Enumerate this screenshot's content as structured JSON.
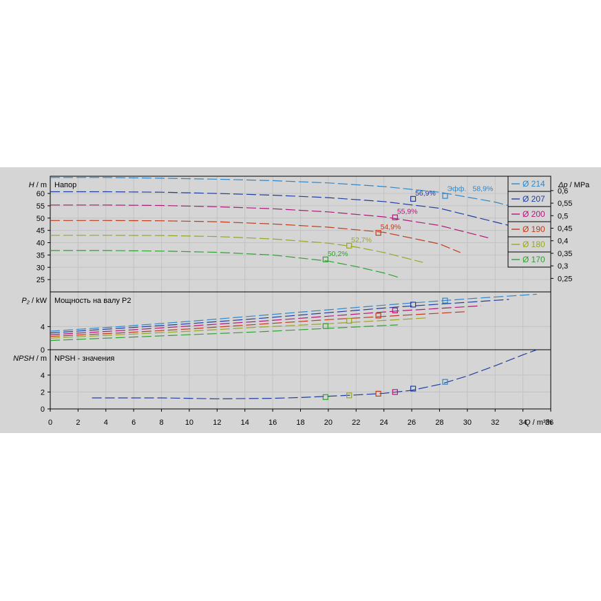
{
  "chart_data": {
    "type": "line",
    "x_axis": {
      "label_var": "Q",
      "label_unit": " / m³/h",
      "range": [
        0,
        36
      ],
      "ticks": [
        "0",
        "2",
        "4",
        "6",
        "8",
        "10",
        "12",
        "14",
        "16",
        "18",
        "20",
        "22",
        "24",
        "26",
        "28",
        "30",
        "32",
        "34",
        "36"
      ]
    },
    "panels": [
      {
        "id": "head",
        "title": "Напор",
        "y_label_var": "H",
        "y_label_unit": " / m",
        "ylim": [
          20,
          67
        ],
        "y_ticks": [
          "25",
          "30",
          "35",
          "40",
          "45",
          "50",
          "55",
          "60"
        ],
        "y2_label_var": "Δp",
        "y2_label_unit": " / MPa",
        "y2_ticks": [
          "0,25",
          "0,3",
          "0,35",
          "0,4",
          "0,45",
          "0,5",
          "0,55",
          "0,6"
        ],
        "efficiency_label": "Эфф.",
        "series": [
          {
            "name": "Ø 214",
            "color": "#2e86c8",
            "x": [
              0,
              4,
              8,
              12,
              16,
              20,
              24,
              28,
              32,
              35
            ],
            "y": [
              66.5,
              66.5,
              66.2,
              65.8,
              65.2,
              64.3,
              62.8,
              60.5,
              56.5,
              52
            ]
          },
          {
            "name": "Ø 207",
            "color": "#1f3da0",
            "x": [
              0,
              4,
              8,
              12,
              16,
              20,
              24,
              28,
              33
            ],
            "y": [
              60.7,
              60.7,
              60.5,
              60.0,
              59.3,
              58.3,
              56.7,
              54,
              47
            ]
          },
          {
            "name": "Ø 200",
            "color": "#b0177a",
            "x": [
              0,
              4,
              8,
              12,
              16,
              20,
              24,
              28,
              31.5
            ],
            "y": [
              55.3,
              55.3,
              55.1,
              54.6,
              53.8,
              52.5,
              50.5,
              47,
              42
            ]
          },
          {
            "name": "Ø 190",
            "color": "#c23a1a",
            "x": [
              0,
              4,
              8,
              12,
              16,
              20,
              24,
              28,
              29.5
            ],
            "y": [
              49,
              49,
              48.9,
              48.5,
              47.6,
              46.3,
              44.2,
              39.5,
              36
            ]
          },
          {
            "name": "Ø 180",
            "color": "#99a520",
            "x": [
              0,
              4,
              8,
              12,
              16,
              20,
              22,
              24,
              26.8
            ],
            "y": [
              43,
              43,
              42.9,
              42.5,
              41.5,
              39.8,
              38.2,
              36,
              32
            ]
          },
          {
            "name": "Ø 170",
            "color": "#2fa032",
            "x": [
              0,
              4,
              8,
              12,
              16,
              20,
              22,
              24,
              25
            ],
            "y": [
              36.8,
              36.8,
              36.6,
              36.1,
              35,
              32.5,
              30.3,
              27.7,
              26
            ]
          }
        ],
        "bep_points": [
          {
            "x": 28.4,
            "y": 59.0,
            "label": "58,9%",
            "color": "#2e86c8"
          },
          {
            "x": 26.1,
            "y": 57.8,
            "label": "56,9%",
            "color": "#1f3da0"
          },
          {
            "x": 24.8,
            "y": 50.3,
            "label": "55,9%",
            "color": "#b0177a"
          },
          {
            "x": 23.6,
            "y": 44.0,
            "label": "54,9%",
            "color": "#c23a1a"
          },
          {
            "x": 21.5,
            "y": 38.8,
            "label": "52,7%",
            "color": "#99a520"
          },
          {
            "x": 19.8,
            "y": 33.2,
            "label": "50,2%",
            "color": "#2fa032"
          }
        ]
      },
      {
        "id": "power",
        "title": "Мощность на валу P2",
        "y_label_var": "P₂",
        "y_label_unit": " / kW",
        "ylim": [
          0,
          10
        ],
        "y_ticks": [
          "0",
          "4"
        ],
        "series": [
          {
            "name": "Ø 214",
            "color": "#2e86c8",
            "x": [
              0,
              5,
              10,
              15,
              20,
              25,
              30,
              35
            ],
            "y": [
              3.2,
              4.0,
              4.9,
              5.9,
              6.9,
              7.9,
              8.8,
              9.6
            ]
          },
          {
            "name": "Ø 207",
            "color": "#1f3da0",
            "x": [
              0,
              5,
              10,
              15,
              20,
              25,
              30,
              33
            ],
            "y": [
              2.9,
              3.7,
              4.5,
              5.4,
              6.4,
              7.4,
              8.2,
              8.7
            ]
          },
          {
            "name": "Ø 200",
            "color": "#b0177a",
            "x": [
              0,
              5,
              10,
              15,
              20,
              25,
              31
            ],
            "y": [
              2.6,
              3.3,
              4.1,
              4.9,
              5.8,
              6.7,
              7.6
            ]
          },
          {
            "name": "Ø 190",
            "color": "#c23a1a",
            "x": [
              0,
              5,
              10,
              15,
              20,
              25,
              30
            ],
            "y": [
              2.3,
              2.9,
              3.6,
              4.4,
              5.2,
              5.9,
              6.6
            ]
          },
          {
            "name": "Ø 180",
            "color": "#99a520",
            "x": [
              0,
              5,
              10,
              15,
              20,
              25,
              27
            ],
            "y": [
              2.0,
              2.6,
              3.2,
              3.9,
              4.5,
              5.2,
              5.5
            ]
          },
          {
            "name": "Ø 170",
            "color": "#2fa032",
            "x": [
              0,
              5,
              10,
              15,
              20,
              25
            ],
            "y": [
              1.6,
              2.1,
              2.6,
              3.1,
              3.7,
              4.3
            ]
          }
        ],
        "points": [
          {
            "x": 28.4,
            "y": 8.5,
            "color": "#2e86c8"
          },
          {
            "x": 26.1,
            "y": 7.8,
            "color": "#1f3da0"
          },
          {
            "x": 24.8,
            "y": 6.8,
            "color": "#b0177a"
          },
          {
            "x": 23.6,
            "y": 5.9,
            "color": "#c23a1a"
          },
          {
            "x": 21.5,
            "y": 5.0,
            "color": "#99a520"
          },
          {
            "x": 19.8,
            "y": 4.1,
            "color": "#2fa032"
          }
        ]
      },
      {
        "id": "npsh",
        "title": "NPSH - значения",
        "y_label_var": "NPSH",
        "y_label_unit": " / m",
        "ylim": [
          0,
          7
        ],
        "y_ticks": [
          "0",
          "2",
          "4"
        ],
        "series": [
          {
            "name": "NPSH",
            "color": "#1f3da0",
            "x": [
              3,
              8,
              12,
              16,
              18,
              20,
              22,
              24,
              26,
              28,
              30,
              32,
              34,
              35
            ],
            "y": [
              1.3,
              1.3,
              1.2,
              1.25,
              1.35,
              1.5,
              1.65,
              1.85,
              2.2,
              2.9,
              3.9,
              5.1,
              6.4,
              7.0
            ]
          }
        ],
        "points": [
          {
            "x": 28.4,
            "y": 3.2,
            "color": "#2e86c8"
          },
          {
            "x": 26.1,
            "y": 2.4,
            "color": "#1f3da0"
          },
          {
            "x": 24.8,
            "y": 2.0,
            "color": "#b0177a"
          },
          {
            "x": 23.6,
            "y": 1.8,
            "color": "#c23a1a"
          },
          {
            "x": 21.5,
            "y": 1.6,
            "color": "#99a520"
          },
          {
            "x": 19.8,
            "y": 1.4,
            "color": "#2fa032"
          }
        ]
      }
    ],
    "legend": {
      "placement": "top-right",
      "entries": [
        {
          "label": "Ø 214",
          "color": "#2e86c8"
        },
        {
          "label": "Ø 207",
          "color": "#1f3da0"
        },
        {
          "label": "Ø 200",
          "color": "#b0177a"
        },
        {
          "label": "Ø 190",
          "color": "#c23a1a"
        },
        {
          "label": "Ø 180",
          "color": "#99a520"
        },
        {
          "label": "Ø 170",
          "color": "#2fa032"
        }
      ]
    },
    "grid": true,
    "colors": {
      "background": "#d5d5d5",
      "grid": "#c2c2c2",
      "axis": "#000000"
    }
  }
}
